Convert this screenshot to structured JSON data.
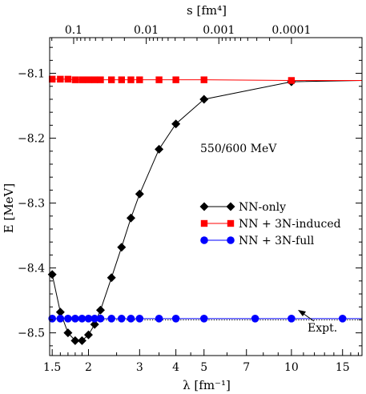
{
  "chart_data": {
    "type": "line",
    "xlabel": "λ [fm⁻¹]",
    "ylabel": "E  [MeV]",
    "x2label": "s [fm⁴]",
    "x_scale": "log",
    "xlim": [
      1.47,
      17.5
    ],
    "ylim": [
      -8.535,
      -8.045
    ],
    "x_ticks": [
      {
        "value": 1.5,
        "label": "1.5"
      },
      {
        "value": 2,
        "label": "2"
      },
      {
        "value": 3,
        "label": "3"
      },
      {
        "value": 4,
        "label": "4"
      },
      {
        "value": 5,
        "label": "5"
      },
      {
        "value": 7,
        "label": "7"
      },
      {
        "value": 10,
        "label": "10"
      },
      {
        "value": 15,
        "label": "15"
      }
    ],
    "y_ticks": [
      {
        "value": -8.1,
        "label": "-8.1"
      },
      {
        "value": -8.2,
        "label": "-8.2"
      },
      {
        "value": -8.3,
        "label": "-8.3"
      },
      {
        "value": -8.4,
        "label": "-8.4"
      },
      {
        "value": -8.5,
        "label": "-8.5"
      }
    ],
    "top_ticks": [
      {
        "value": 0.1,
        "label": "0.1"
      },
      {
        "value": 0.01,
        "label": "0.01"
      },
      {
        "value": 0.001,
        "label": "0.001"
      },
      {
        "value": 0.0001,
        "label": "0.0001"
      }
    ],
    "series": [
      {
        "name": "NN-only",
        "color": "#000000",
        "marker": "diamond",
        "x": [
          1.5,
          1.6,
          1.7,
          1.8,
          1.9,
          2.0,
          2.1,
          2.2,
          2.4,
          2.6,
          2.8,
          3.0,
          3.5,
          4.0,
          5.0,
          10.0,
          17.5
        ],
        "y": [
          -8.41,
          -8.468,
          -8.5,
          -8.512,
          -8.512,
          -8.503,
          -8.487,
          -8.465,
          -8.415,
          -8.368,
          -8.323,
          -8.286,
          -8.217,
          -8.178,
          -8.14,
          -8.113,
          -8.111
        ]
      },
      {
        "name": "NN + 3N-induced",
        "color": "#ff0000",
        "marker": "square",
        "x": [
          1.5,
          1.6,
          1.7,
          1.8,
          1.9,
          2.0,
          2.1,
          2.2,
          2.4,
          2.6,
          2.8,
          3.0,
          3.5,
          4.0,
          5.0,
          10.0,
          17.5
        ],
        "y": [
          -8.109,
          -8.109,
          -8.109,
          -8.11,
          -8.11,
          -8.11,
          -8.11,
          -8.11,
          -8.11,
          -8.11,
          -8.11,
          -8.11,
          -8.11,
          -8.11,
          -8.11,
          -8.111,
          -8.111
        ]
      },
      {
        "name": "NN + 3N-full",
        "color": "#0000ff",
        "marker": "circle",
        "x": [
          1.5,
          1.6,
          1.7,
          1.8,
          1.9,
          2.0,
          2.1,
          2.2,
          2.4,
          2.6,
          2.8,
          3.0,
          3.5,
          4.0,
          5.0,
          7.5,
          10.0,
          15.0,
          17.5
        ],
        "y": [
          -8.478,
          -8.478,
          -8.478,
          -8.478,
          -8.478,
          -8.478,
          -8.478,
          -8.478,
          -8.478,
          -8.478,
          -8.478,
          -8.478,
          -8.478,
          -8.478,
          -8.478,
          -8.478,
          -8.478,
          -8.478,
          -8.478
        ]
      }
    ],
    "expt": {
      "value": -8.48,
      "label": "Expt."
    },
    "annotation": "550/600 MeV",
    "legend": {
      "position": "center-right"
    },
    "grid": false
  }
}
